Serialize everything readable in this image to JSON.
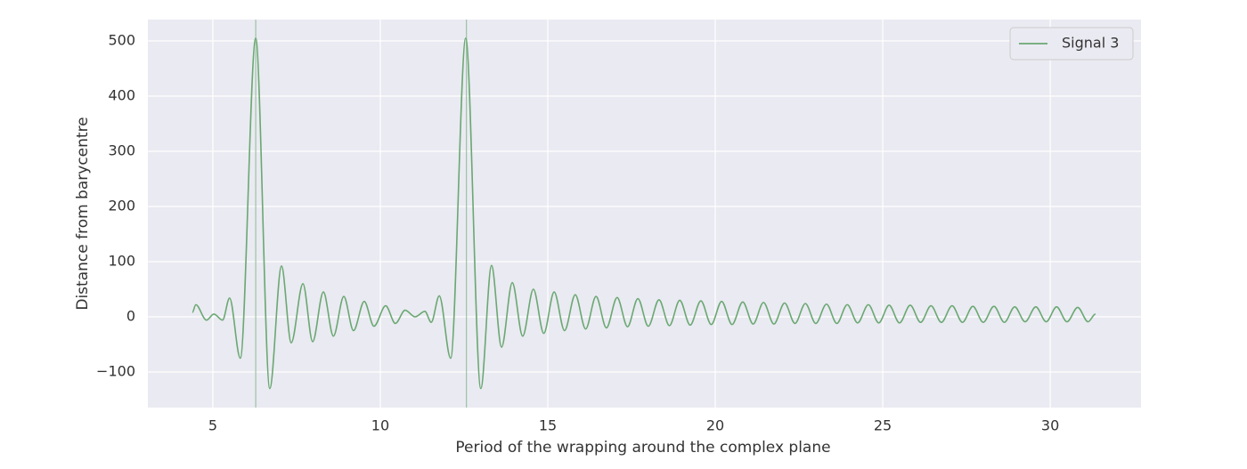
{
  "chart_data": {
    "type": "line",
    "xlabel": "Period of the wrapping around the complex plane",
    "ylabel": "Distance from barycentre",
    "x": [
      4.39,
      4.49,
      4.81,
      5.03,
      5.29,
      5.5,
      5.82,
      6.28,
      6.7,
      7.05,
      7.34,
      7.69,
      7.98,
      8.3,
      8.6,
      8.91,
      9.2,
      9.52,
      9.81,
      10.16,
      10.45,
      10.74,
      11.04,
      11.33,
      11.52,
      11.76,
      12.1,
      12.55,
      13.0,
      13.32,
      13.62,
      13.94,
      14.25,
      14.57,
      14.88,
      15.19,
      15.5,
      15.82,
      16.13,
      16.44,
      16.75,
      17.07,
      17.38,
      17.69,
      18.0,
      18.32,
      18.63,
      18.94,
      19.25,
      19.57,
      19.88,
      20.19,
      20.5,
      20.82,
      21.13,
      21.44,
      21.75,
      22.07,
      22.38,
      22.69,
      23.0,
      23.32,
      23.63,
      23.94,
      24.25,
      24.57,
      24.88,
      25.19,
      25.5,
      25.82,
      26.13,
      26.44,
      26.75,
      27.07,
      27.38,
      27.69,
      28.0,
      28.32,
      28.63,
      28.94,
      29.25,
      29.57,
      29.88,
      30.19,
      30.5,
      30.82,
      31.13,
      31.35
    ],
    "series": [
      {
        "name": "Signal 3",
        "color": "#6aa872",
        "values": [
          8,
          22,
          -6,
          5,
          -6,
          34,
          -75,
          505,
          -130,
          92,
          -47,
          60,
          -45,
          45,
          -35,
          37,
          -25,
          28,
          -17,
          20,
          -12,
          12,
          0,
          10,
          -10,
          38,
          -75,
          505,
          -130,
          93,
          -55,
          62,
          -35,
          50,
          -30,
          45,
          -25,
          40,
          -22,
          37,
          -20,
          35,
          -18,
          33,
          -17,
          31,
          -16,
          30,
          -15,
          29,
          -14,
          28,
          -14,
          27,
          -13,
          26,
          -13,
          25,
          -12,
          24,
          -12,
          23,
          -12,
          22,
          -11,
          22,
          -11,
          21,
          -11,
          21,
          -10,
          20,
          -10,
          20,
          -10,
          19,
          -10,
          19,
          -10,
          18,
          -9,
          18,
          -9,
          18,
          -9,
          17,
          -9,
          5
        ]
      }
    ],
    "vlines": [
      6.28,
      12.57
    ],
    "xlim": [
      3.06,
      32.71
    ],
    "ylim": [
      -164.5,
      538.7
    ],
    "xticks": [
      5,
      10,
      15,
      20,
      25,
      30
    ],
    "yticks": [
      {
        "value": -100,
        "label": "−100"
      },
      0,
      100,
      200,
      300,
      400,
      500
    ],
    "grid": true,
    "legend": "upper right"
  }
}
